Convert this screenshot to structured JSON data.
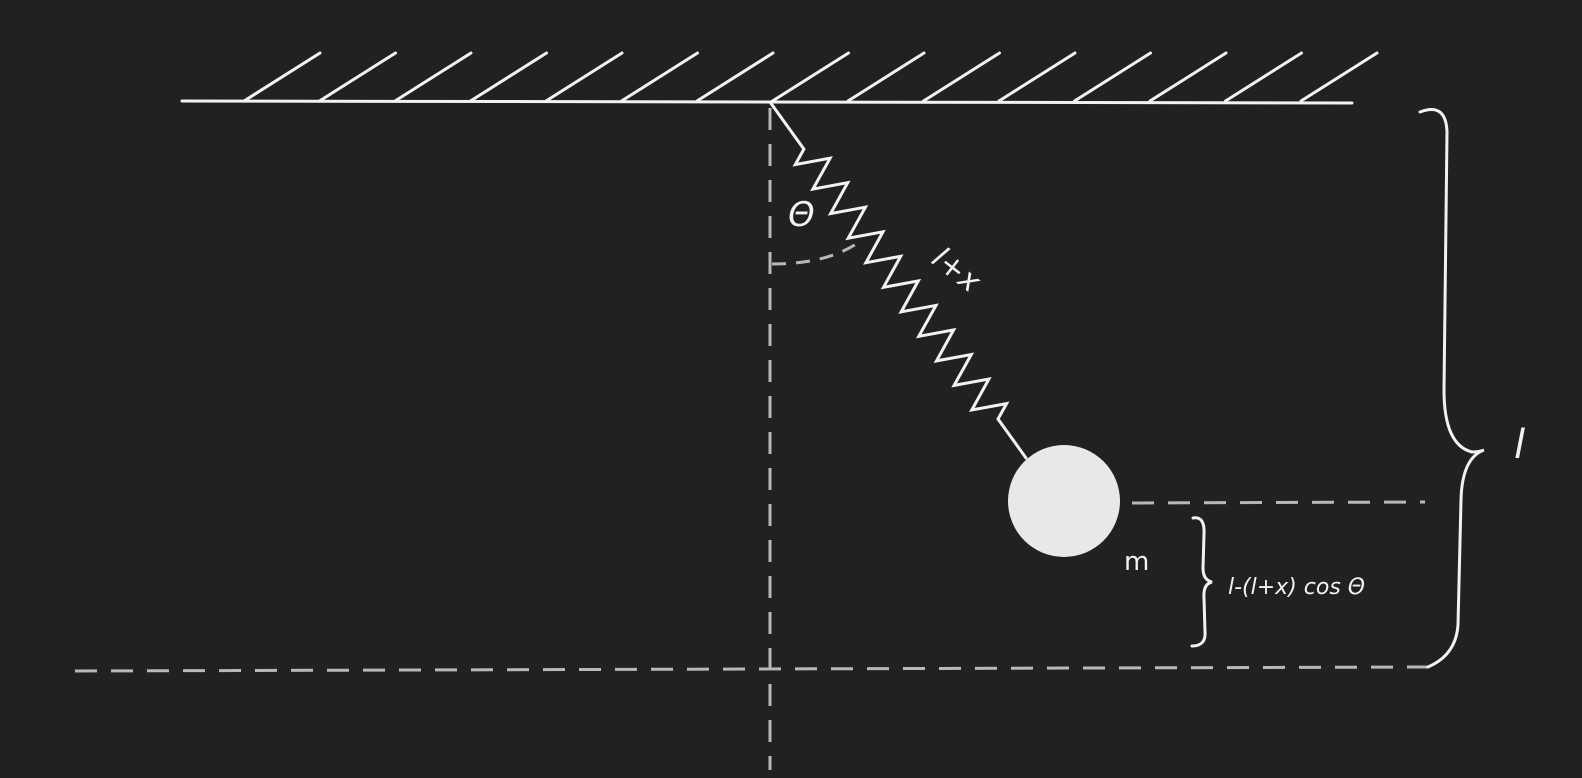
{
  "diagram": {
    "colors": {
      "background": "#222120",
      "stroke": "#f2f2f2",
      "dashed": "#b8b8b8",
      "mass_fill": "#e8e8e6"
    },
    "labels": {
      "angle": "Θ",
      "spring_length": "l+x",
      "mass": "m",
      "height": "l-(l+x) cos Θ",
      "rest_length": "l"
    }
  }
}
